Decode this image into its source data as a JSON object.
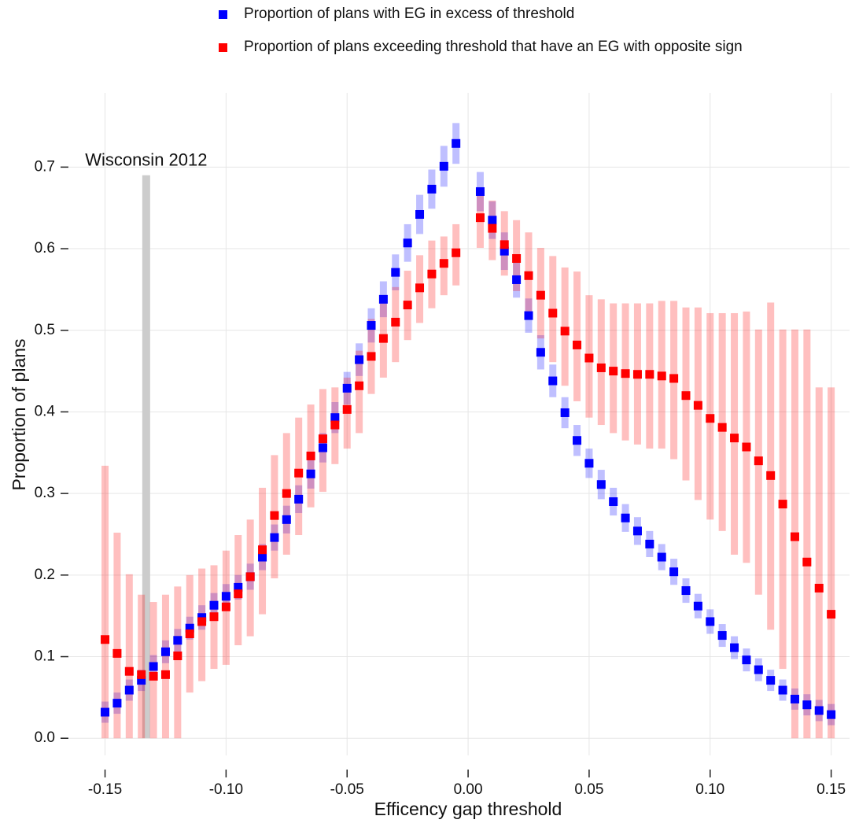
{
  "chart_data": {
    "type": "scatter",
    "xlabel": "Efficency gap threshold",
    "ylabel": "Proportion of plans",
    "xlim": [
      -0.1648,
      0.1576
    ],
    "ylim": [
      -0.021,
      0.791
    ],
    "xticks": [
      -0.15,
      {
        "value": -0.1,
        "label": "-0.10"
      },
      -0.05,
      {
        "value": 0,
        "label": "0.00"
      },
      0.05,
      {
        "value": 0.1,
        "label": "0.10"
      },
      0.15
    ],
    "yticks": [
      {
        "value": 0,
        "label": "0.0"
      },
      0.1,
      0.2,
      0.3,
      0.4,
      0.5,
      0.6,
      0.7
    ],
    "grid": true,
    "legend": "top",
    "annotation": {
      "label": "Wisconsin 2012",
      "x": -0.133,
      "y": 0.69,
      "color": "#cccccc"
    },
    "x": [
      -0.15,
      -0.145,
      -0.14,
      -0.135,
      -0.13,
      -0.125,
      -0.12,
      -0.115,
      -0.11,
      -0.105,
      -0.1,
      -0.095,
      -0.09,
      -0.085,
      -0.08,
      -0.075,
      -0.07,
      -0.065,
      -0.06,
      -0.055,
      -0.05,
      -0.045,
      -0.04,
      -0.035,
      -0.03,
      -0.025,
      -0.02,
      -0.015,
      -0.01,
      -0.005,
      0.005,
      0.01,
      0.015,
      0.02,
      0.025,
      0.03,
      0.035,
      0.04,
      0.045,
      0.05,
      0.055,
      0.06,
      0.065,
      0.07,
      0.075,
      0.08,
      0.085,
      0.09,
      0.095,
      0.1,
      0.105,
      0.11,
      0.115,
      0.12,
      0.125,
      0.13,
      0.135,
      0.14,
      0.145,
      0.15
    ],
    "series": [
      {
        "name": "Proportion of plans with EG in excess of threshold",
        "color": "#0000ff",
        "values": [
          0.032,
          0.043,
          0.059,
          0.071,
          0.088,
          0.106,
          0.12,
          0.135,
          0.148,
          0.163,
          0.174,
          0.185,
          0.198,
          0.222,
          0.246,
          0.268,
          0.293,
          0.324,
          0.356,
          0.393,
          0.429,
          0.464,
          0.506,
          0.538,
          0.571,
          0.607,
          0.642,
          0.673,
          0.701,
          0.729,
          0.67,
          0.635,
          0.597,
          0.562,
          0.518,
          0.473,
          0.438,
          0.399,
          0.365,
          0.337,
          0.311,
          0.29,
          0.27,
          0.254,
          0.238,
          0.222,
          0.204,
          0.181,
          0.162,
          0.143,
          0.126,
          0.111,
          0.096,
          0.084,
          0.071,
          0.059,
          0.048,
          0.041,
          0.034,
          0.029
        ],
        "low": [
          0.019,
          0.03,
          0.046,
          0.058,
          0.074,
          0.092,
          0.106,
          0.121,
          0.133,
          0.148,
          0.159,
          0.17,
          0.182,
          0.206,
          0.23,
          0.251,
          0.276,
          0.306,
          0.338,
          0.374,
          0.409,
          0.444,
          0.485,
          0.516,
          0.549,
          0.584,
          0.618,
          0.649,
          0.676,
          0.704,
          0.646,
          0.612,
          0.574,
          0.54,
          0.497,
          0.452,
          0.418,
          0.38,
          0.346,
          0.319,
          0.293,
          0.273,
          0.253,
          0.237,
          0.222,
          0.206,
          0.188,
          0.166,
          0.147,
          0.128,
          0.112,
          0.097,
          0.082,
          0.07,
          0.058,
          0.046,
          0.035,
          0.028,
          0.021,
          0.016
        ],
        "high": [
          0.045,
          0.056,
          0.072,
          0.084,
          0.102,
          0.12,
          0.134,
          0.149,
          0.163,
          0.178,
          0.189,
          0.2,
          0.214,
          0.238,
          0.262,
          0.285,
          0.31,
          0.342,
          0.374,
          0.412,
          0.449,
          0.484,
          0.527,
          0.56,
          0.593,
          0.63,
          0.666,
          0.697,
          0.726,
          0.754,
          0.694,
          0.658,
          0.62,
          0.584,
          0.539,
          0.494,
          0.458,
          0.418,
          0.384,
          0.355,
          0.329,
          0.307,
          0.287,
          0.271,
          0.254,
          0.238,
          0.22,
          0.196,
          0.177,
          0.158,
          0.14,
          0.125,
          0.11,
          0.098,
          0.084,
          0.072,
          0.061,
          0.054,
          0.047,
          0.042
        ]
      },
      {
        "name": "Proportion of plans exceeding threshold that have an EG with opposite sign",
        "color": "#ff0000",
        "values": [
          0.121,
          0.104,
          0.082,
          0.078,
          0.076,
          0.078,
          0.101,
          0.128,
          0.143,
          0.149,
          0.161,
          0.177,
          0.198,
          0.231,
          0.273,
          0.3,
          0.325,
          0.346,
          0.367,
          0.384,
          0.403,
          0.432,
          0.468,
          0.49,
          0.51,
          0.531,
          0.552,
          0.569,
          0.582,
          0.595,
          0.638,
          0.625,
          0.605,
          0.588,
          0.567,
          0.543,
          0.521,
          0.499,
          0.482,
          0.466,
          0.454,
          0.45,
          0.447,
          0.446,
          0.446,
          0.444,
          0.441,
          0.42,
          0.408,
          0.392,
          0.381,
          0.368,
          0.357,
          0.34,
          0.322,
          0.287,
          0.247,
          0.216,
          0.184,
          0.152
        ],
        "low": [
          0,
          0,
          0,
          0,
          0,
          0,
          0,
          0.056,
          0.07,
          0.085,
          0.09,
          0.114,
          0.125,
          0.152,
          0.196,
          0.225,
          0.249,
          0.283,
          0.302,
          0.336,
          0.355,
          0.374,
          0.422,
          0.442,
          0.461,
          0.488,
          0.509,
          0.527,
          0.543,
          0.555,
          0.601,
          0.586,
          0.567,
          0.548,
          0.519,
          0.49,
          0.461,
          0.432,
          0.413,
          0.393,
          0.384,
          0.374,
          0.365,
          0.36,
          0.355,
          0.355,
          0.342,
          0.316,
          0.292,
          0.268,
          0.254,
          0.225,
          0.215,
          0.176,
          0.133,
          0.085,
          0,
          0,
          0,
          0
        ],
        "high": [
          0.334,
          0.252,
          0.201,
          0.176,
          0.167,
          0.176,
          0.186,
          0.2,
          0.208,
          0.212,
          0.23,
          0.249,
          0.268,
          0.307,
          0.347,
          0.374,
          0.393,
          0.409,
          0.428,
          0.43,
          0.442,
          0.475,
          0.514,
          0.533,
          0.553,
          0.573,
          0.592,
          0.61,
          0.615,
          0.63,
          0.67,
          0.659,
          0.646,
          0.635,
          0.62,
          0.601,
          0.591,
          0.577,
          0.572,
          0.543,
          0.538,
          0.533,
          0.533,
          0.533,
          0.533,
          0.536,
          0.536,
          0.528,
          0.528,
          0.521,
          0.521,
          0.521,
          0.523,
          0.501,
          0.534,
          0.501,
          0.501,
          0.501,
          0.43,
          0.43
        ]
      }
    ]
  }
}
